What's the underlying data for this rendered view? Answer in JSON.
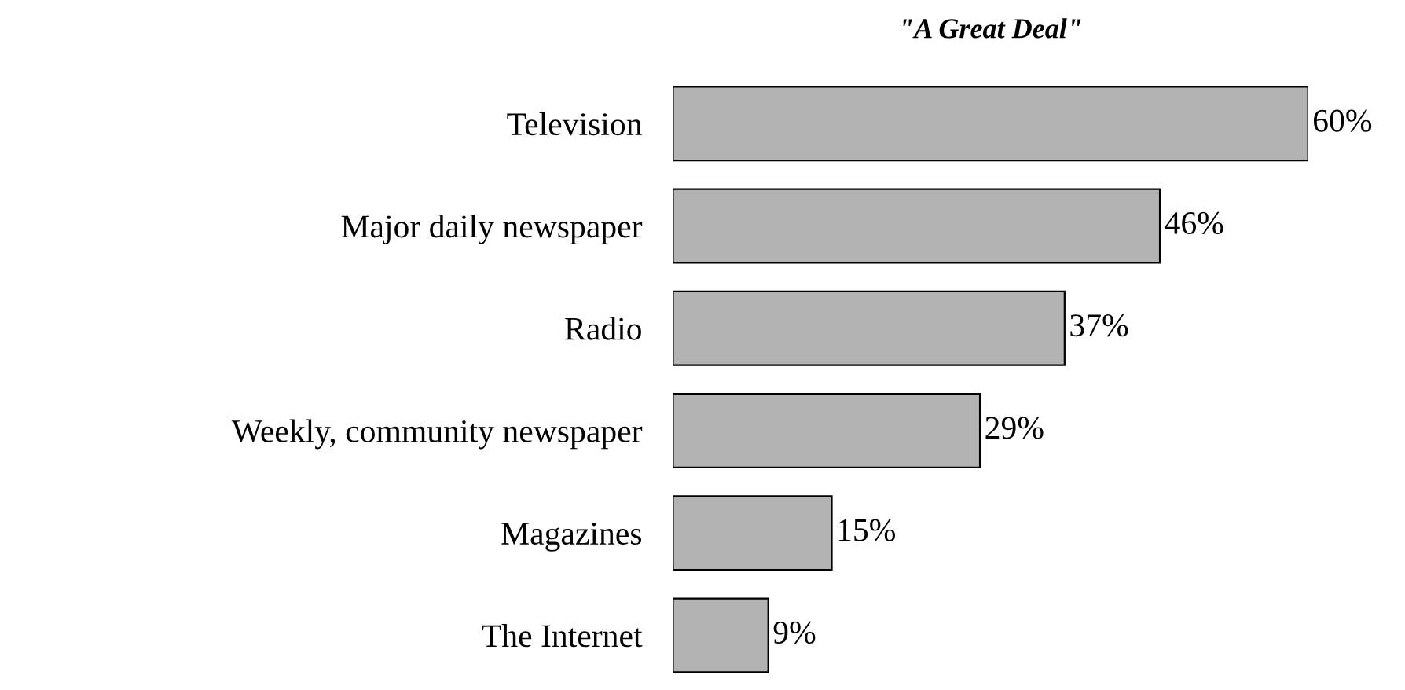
{
  "chart_data": {
    "type": "bar",
    "orientation": "horizontal",
    "title": "\"A Great Deal\"",
    "categories": [
      "Television",
      "Major daily newspaper",
      "Radio",
      "Weekly, community newspaper",
      "Magazines",
      "The Internet"
    ],
    "values": [
      60,
      46,
      37,
      29,
      15,
      9
    ],
    "value_labels": [
      "60%",
      "46%",
      "37%",
      "29%",
      "15%",
      "9%"
    ],
    "color": "#b3b3b3",
    "grid": false,
    "legend": false
  }
}
